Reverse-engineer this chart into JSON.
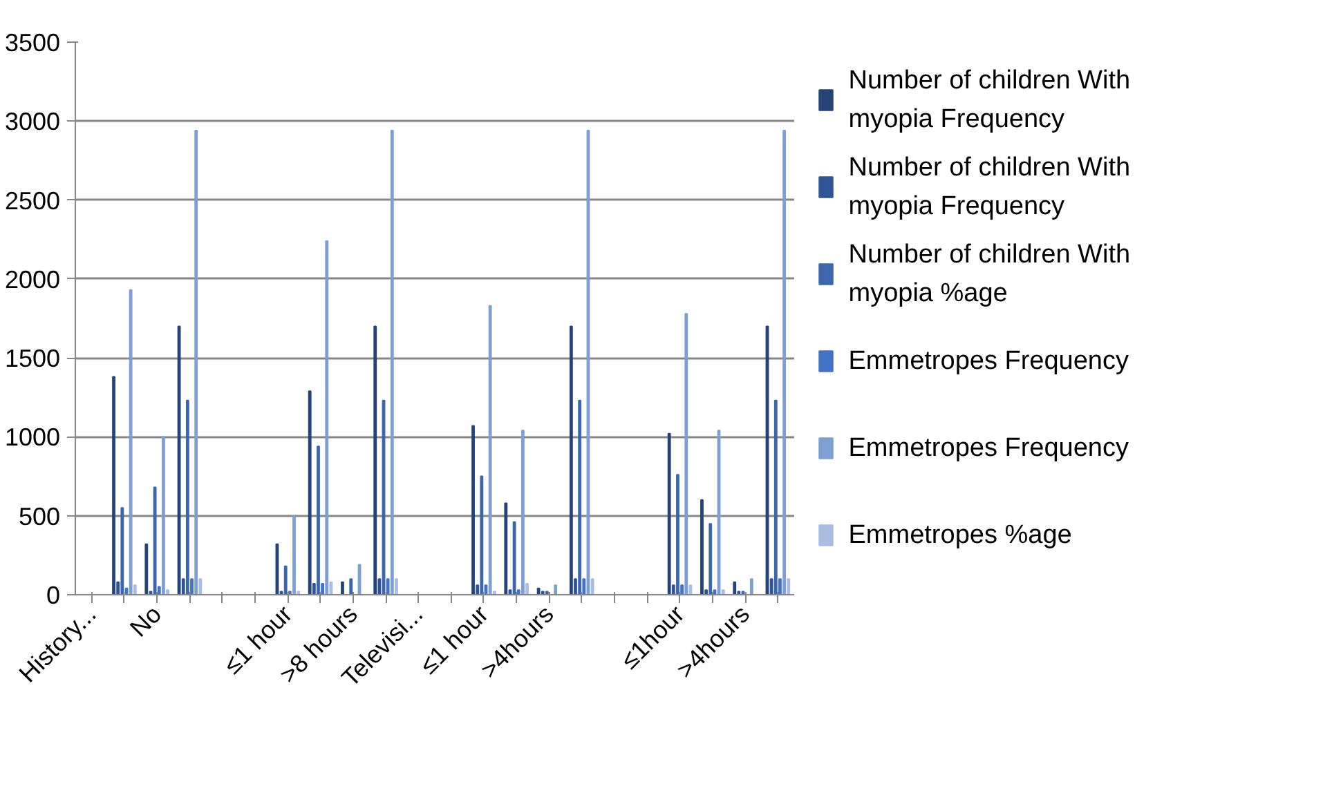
{
  "chart_data": {
    "type": "bar",
    "categories": [
      "History...",
      null,
      "No",
      null,
      null,
      null,
      "≤1 hour",
      null,
      ">8 hours",
      null,
      "Televisi...",
      null,
      "≤1 hour",
      null,
      ">4hours",
      null,
      null,
      null,
      "≤1hour",
      null,
      ">4hours",
      null
    ],
    "series": [
      {
        "name": "Number of children With myopia Frequency",
        "color": "#264478",
        "values": [
          null,
          1380,
          320,
          1700,
          null,
          null,
          320,
          1290,
          80,
          1700,
          null,
          null,
          1070,
          580,
          40,
          1700,
          null,
          null,
          1020,
          600,
          80,
          1700
        ]
      },
      {
        "name": "Number of children With myopia Frequency",
        "color": "#2f5597",
        "values": [
          null,
          80,
          20,
          100,
          null,
          null,
          20,
          70,
          null,
          100,
          null,
          null,
          60,
          30,
          20,
          100,
          null,
          null,
          60,
          30,
          20,
          100
        ]
      },
      {
        "name": "Number of children With myopia %age",
        "color": "#3c66ad",
        "values": [
          null,
          550,
          680,
          1230,
          null,
          null,
          180,
          940,
          100,
          1230,
          null,
          null,
          750,
          460,
          20,
          1230,
          null,
          null,
          760,
          450,
          20,
          1230
        ]
      },
      {
        "name": "Emmetropes Frequency",
        "color": "#4472c4",
        "values": [
          null,
          40,
          50,
          100,
          null,
          null,
          20,
          70,
          null,
          100,
          null,
          null,
          60,
          30,
          null,
          100,
          null,
          null,
          60,
          30,
          null,
          100
        ]
      },
      {
        "name": "Emmetropes Frequency",
        "color": "#7f9fd3",
        "values": [
          null,
          1930,
          1000,
          2940,
          null,
          null,
          500,
          2240,
          190,
          2940,
          null,
          null,
          1830,
          1040,
          60,
          2940,
          null,
          null,
          1780,
          1040,
          100,
          2940
        ]
      },
      {
        "name": "Emmetropes %age",
        "color": "#a9bde3",
        "values": [
          null,
          60,
          30,
          100,
          null,
          null,
          20,
          80,
          null,
          100,
          null,
          null,
          20,
          70,
          null,
          100,
          null,
          null,
          60,
          30,
          null,
          100
        ]
      }
    ],
    "ylim": [
      0,
      3500
    ],
    "yticks": [
      0,
      500,
      1000,
      1500,
      2000,
      2500,
      3000,
      3500
    ],
    "grid": "y",
    "legend": "right"
  }
}
